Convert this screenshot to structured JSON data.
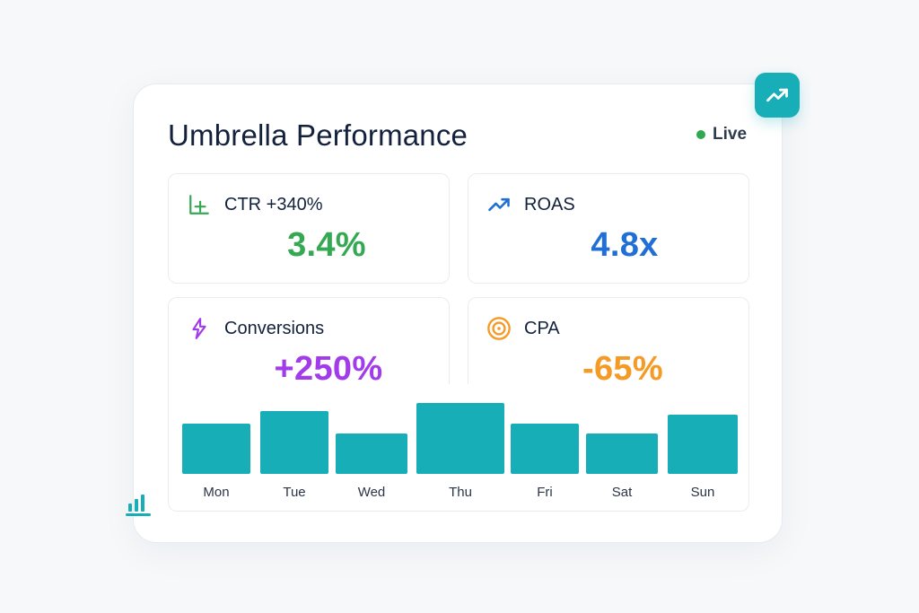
{
  "dashboard": {
    "title": "Umbrella Performance",
    "status": {
      "label": "Live",
      "color": "#2fa84f"
    }
  },
  "icons": {
    "corner_badge": "trending-up-icon",
    "bottom": "bar-chart-icon"
  },
  "metrics": [
    {
      "key": "ctr",
      "label": "CTR +340%",
      "value": "3.4%",
      "color": "#34a853",
      "icon": "chart-axis-icon"
    },
    {
      "key": "roas",
      "label": "ROAS",
      "value": "4.8x",
      "color": "#1f6fd6",
      "icon": "trending-up-icon"
    },
    {
      "key": "conversions",
      "label": "Conversions",
      "value": "+250%",
      "color": "#a23bea",
      "icon": "lightning-icon"
    },
    {
      "key": "cpa",
      "label": "CPA",
      "value": "-65%",
      "color": "#f59a24",
      "icon": "target-icon"
    }
  ],
  "chart_data": {
    "type": "bar",
    "categories": [
      "Mon",
      "Tue",
      "Wed",
      "Thu",
      "Fri",
      "Sat",
      "Sun"
    ],
    "values": [
      56,
      70,
      45,
      79,
      56,
      45,
      66
    ],
    "color": "#17aeb8",
    "ylim": [
      0,
      100
    ],
    "grid": false,
    "legend": "none"
  }
}
